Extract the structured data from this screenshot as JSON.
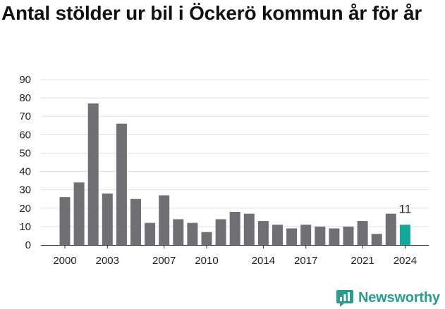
{
  "title": "Antal stölder ur bil i Öckerö kommun år för år",
  "brand": {
    "name": "Newsworthy",
    "icon": "newsworthy-logo-icon",
    "color": "#2a9d8f"
  },
  "colors": {
    "bar": "#707074",
    "highlight": "#11a89b",
    "grid": "#e0e0e0",
    "axis": "#333333"
  },
  "chart_data": {
    "type": "bar",
    "title": "Antal stölder ur bil i Öckerö kommun år för år",
    "xlabel": "",
    "ylabel": "",
    "categories": [
      2000,
      2001,
      2002,
      2003,
      2004,
      2005,
      2006,
      2007,
      2008,
      2009,
      2010,
      2011,
      2012,
      2013,
      2014,
      2015,
      2016,
      2017,
      2018,
      2019,
      2020,
      2021,
      2022,
      2023,
      2024
    ],
    "values": [
      26,
      34,
      77,
      28,
      66,
      25,
      12,
      27,
      14,
      12,
      7,
      14,
      18,
      17,
      13,
      11,
      9,
      11,
      10,
      9,
      10,
      13,
      6,
      17,
      11
    ],
    "x_ticks": [
      2000,
      2003,
      2007,
      2010,
      2014,
      2017,
      2021,
      2024
    ],
    "y_ticks": [
      0,
      10,
      20,
      30,
      40,
      50,
      60,
      70,
      80,
      90
    ],
    "ylim": [
      0,
      90
    ],
    "grid": true,
    "highlight_category": 2024,
    "data_labels": [
      {
        "category": 2024,
        "text": "11"
      }
    ]
  }
}
